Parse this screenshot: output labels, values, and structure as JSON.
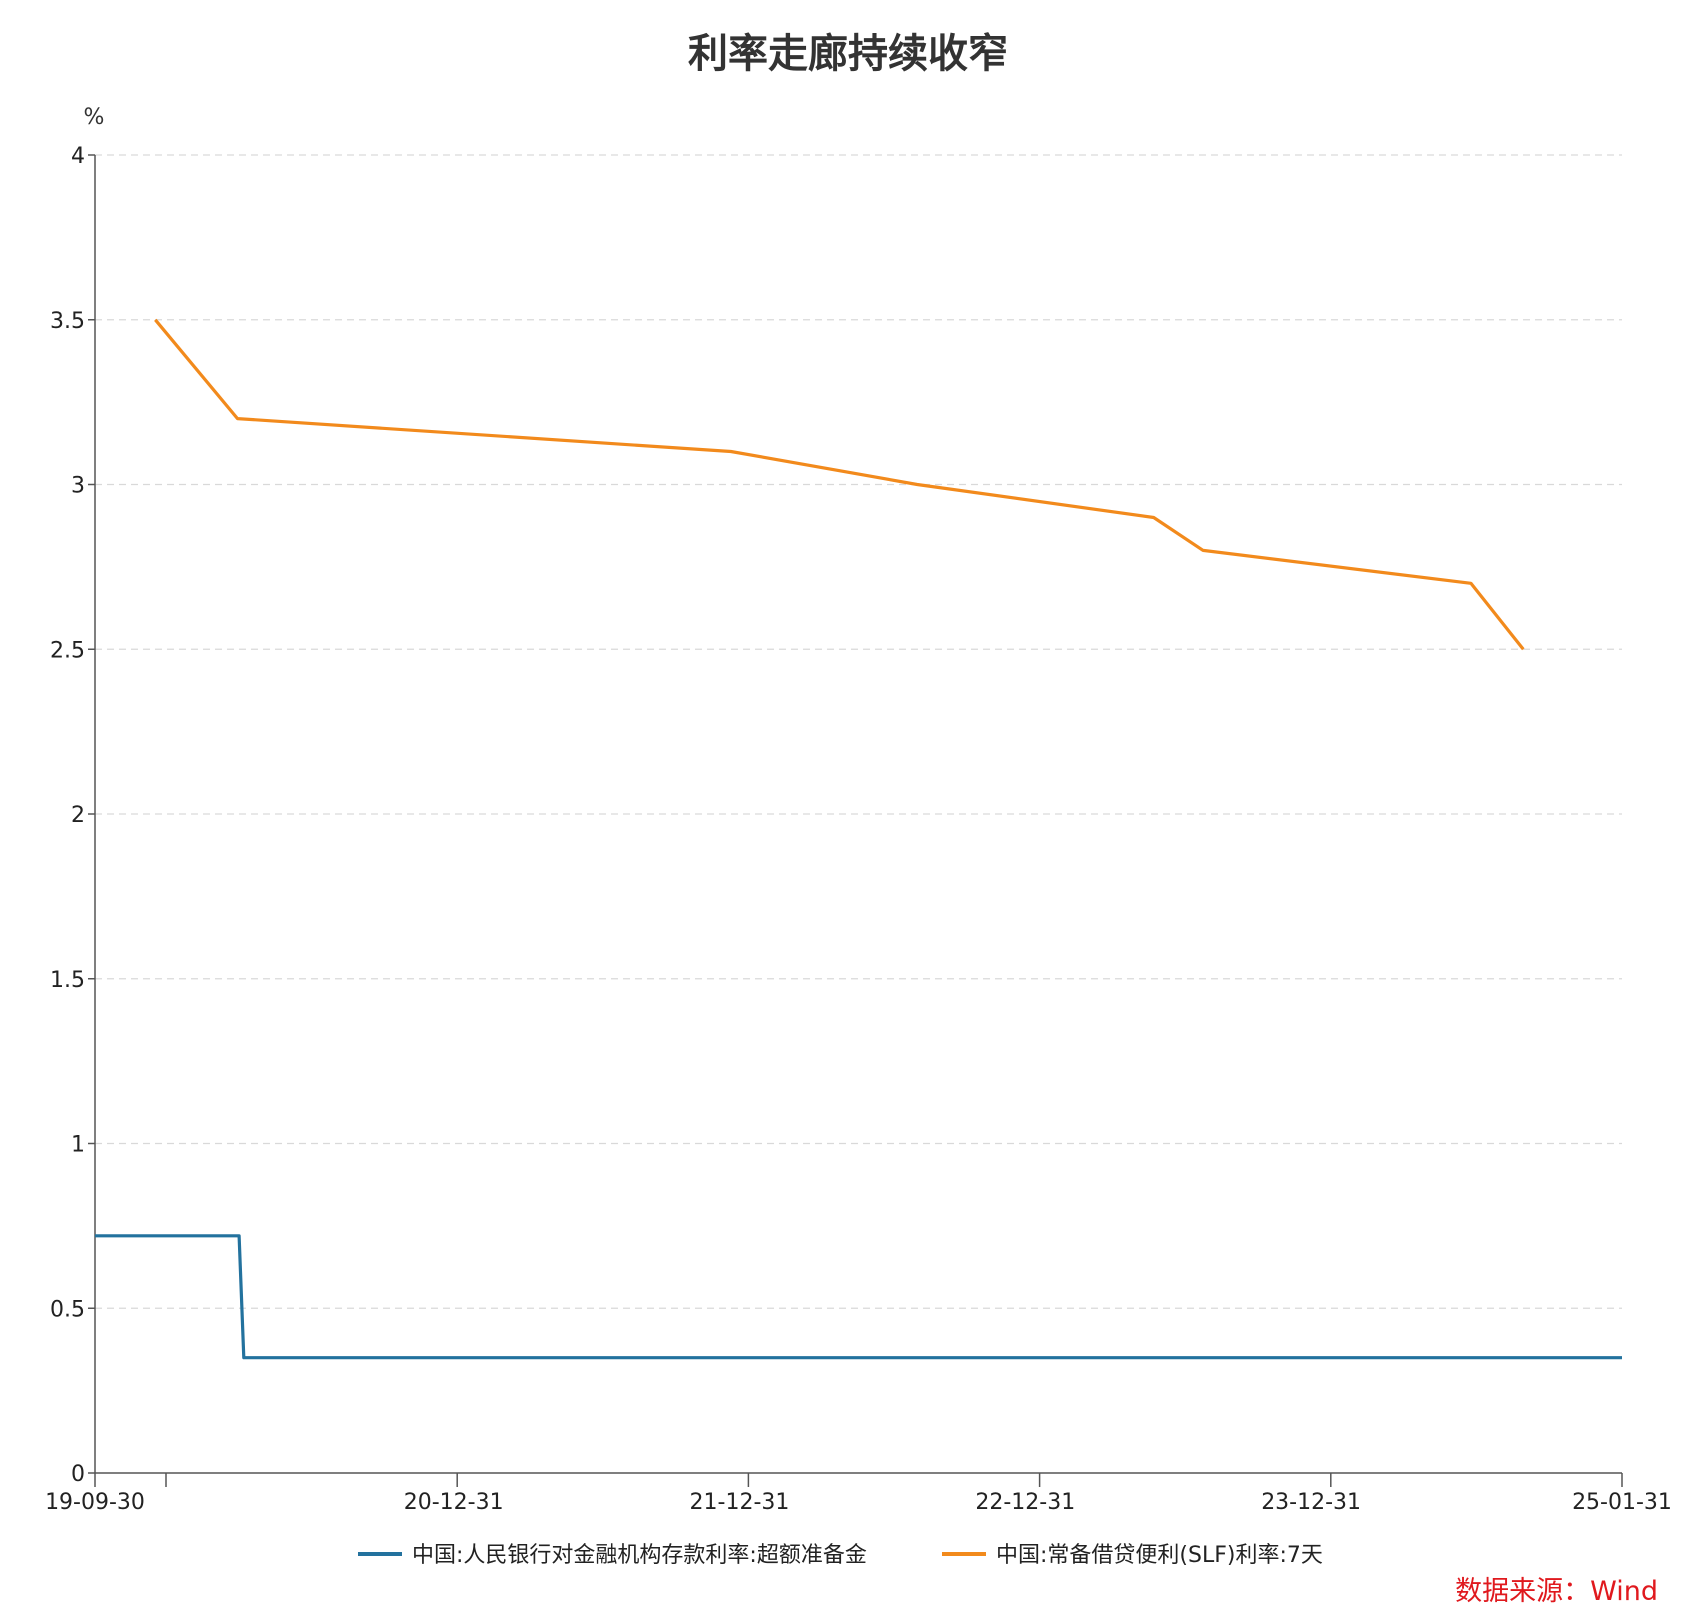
{
  "chart_data": {
    "type": "line",
    "title": "利率走廊持续收窄",
    "y_unit": "%",
    "ylim": [
      0,
      4
    ],
    "y_ticks": [
      0,
      0.5,
      1,
      1.5,
      2,
      2.5,
      3,
      3.5,
      4
    ],
    "y_tick_labels": [
      "0",
      "0.5",
      "1",
      "1.5",
      "2",
      "2.5",
      "3",
      "3.5",
      "4"
    ],
    "xlim": [
      "2019-09-30",
      "2025-01-31"
    ],
    "x_ticks": [
      "2019-09-30",
      "2020-12-31",
      "2021-12-31",
      "2022-12-31",
      "2023-12-31",
      "2025-01-31"
    ],
    "x_tick_labels": [
      "19-09-30",
      "20-12-31",
      "21-12-31",
      "22-12-31",
      "23-12-31",
      "25-01-31"
    ],
    "grid": true,
    "legend_position": "bottom",
    "series": [
      {
        "name": "中国:人民银行对金融机构存款利率:超额准备金",
        "color": "#23729e",
        "points": [
          [
            "2019-09-30",
            0.72
          ],
          [
            "2020-04-01",
            0.72
          ],
          [
            "2020-04-07",
            0.35
          ],
          [
            "2025-01-31",
            0.35
          ]
        ]
      },
      {
        "name": "中国:常备借贷便利(SLF)利率:7天",
        "color": "#f28a1c",
        "points": [
          [
            "2019-12-16",
            3.5
          ],
          [
            "2020-03-30",
            3.2
          ],
          [
            "2021-12-20",
            3.1
          ],
          [
            "2022-08-15",
            3.0
          ],
          [
            "2023-06-13",
            2.9
          ],
          [
            "2023-08-15",
            2.8
          ],
          [
            "2024-07-22",
            2.7
          ],
          [
            "2024-09-27",
            2.5
          ]
        ]
      }
    ]
  },
  "source_label": "数据来源：Wind"
}
